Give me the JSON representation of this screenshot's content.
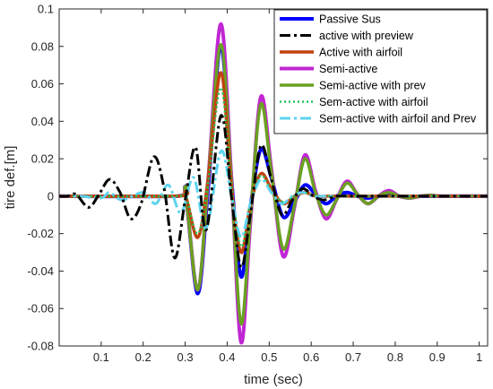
{
  "chart_data": {
    "type": "line",
    "title": "",
    "xlabel": "time (sec)",
    "ylabel": "tire def.[m]",
    "xlim": [
      0,
      1.02
    ],
    "ylim": [
      -0.08,
      0.1
    ],
    "xticks": [
      0.1,
      0.2,
      0.3,
      0.4,
      0.5,
      0.6,
      0.7,
      0.8,
      0.9,
      1
    ],
    "xtick_labels": [
      "0.1",
      "0.2",
      "0.3",
      "0.4",
      "0.5",
      "0.6",
      "0.7",
      "0.8",
      "0.9",
      "1"
    ],
    "yticks": [
      -0.08,
      -0.06,
      -0.04,
      -0.02,
      0,
      0.02,
      0.04,
      0.06,
      0.08,
      0.1
    ],
    "ytick_labels": [
      "-0.08",
      "-0.06",
      "-0.04",
      "-0.02",
      "0",
      "0.02",
      "0.04",
      "0.06",
      "0.08",
      "0.1"
    ],
    "grid": false,
    "legend_position": "top-right",
    "series": [
      {
        "name": "Passive Sus",
        "color": "#0000ff",
        "style": "solid",
        "x": [
          0,
          0.28,
          0.3,
          0.33,
          0.355,
          0.385,
          0.41,
          0.433,
          0.455,
          0.48,
          0.505,
          0.533,
          0.56,
          0.585,
          0.61,
          0.635,
          0.66,
          0.685,
          0.71,
          0.735,
          0.76,
          0.785,
          0.81,
          0.835,
          0.86,
          0.9,
          0.95,
          1.02
        ],
        "y": [
          0,
          0,
          0.002,
          -0.052,
          0.005,
          0.08,
          0.01,
          -0.043,
          -0.006,
          0.025,
          0.01,
          -0.011,
          -0.003,
          0.006,
          0.001,
          -0.004,
          0,
          0.002,
          0,
          -0.001,
          0,
          0.0005,
          0,
          -0.0005,
          0,
          0,
          0,
          0
        ]
      },
      {
        "name": "active with preview",
        "color": "#000000",
        "style": "dashdot",
        "x": [
          0,
          0.02,
          0.04,
          0.07,
          0.095,
          0.12,
          0.145,
          0.17,
          0.195,
          0.225,
          0.25,
          0.275,
          0.3,
          0.325,
          0.35,
          0.385,
          0.41,
          0.433,
          0.455,
          0.48,
          0.505,
          0.53,
          0.555,
          0.58,
          0.605,
          0.63,
          0.66,
          0.7,
          0.75,
          0.8,
          0.85,
          0.9,
          1.02
        ],
        "y": [
          0,
          0,
          0.001,
          -0.006,
          0.001,
          0.009,
          0.002,
          -0.012,
          -0.004,
          0.021,
          0.004,
          -0.033,
          -0.002,
          0.026,
          -0.018,
          0.043,
          0,
          -0.038,
          -0.01,
          0.027,
          0.009,
          -0.01,
          -0.002,
          0.004,
          0,
          -0.002,
          0,
          0,
          0,
          0,
          0,
          0,
          0
        ]
      },
      {
        "name": "Active with airfoil",
        "color": "#c2410c",
        "style": "solid",
        "x": [
          0,
          0.28,
          0.3,
          0.33,
          0.355,
          0.385,
          0.41,
          0.433,
          0.455,
          0.48,
          0.505,
          0.533,
          0.56,
          0.585,
          0.61,
          0.64,
          0.7,
          0.8,
          0.9,
          1.02
        ],
        "y": [
          0,
          0,
          0.001,
          -0.022,
          0.01,
          0.066,
          0.005,
          -0.03,
          -0.005,
          0.012,
          0.004,
          -0.004,
          0,
          0.002,
          0,
          0,
          0,
          0,
          0,
          0
        ]
      },
      {
        "name": "Semi-active",
        "color": "#c026d3",
        "style": "solid",
        "x": [
          0,
          0.28,
          0.3,
          0.33,
          0.355,
          0.385,
          0.41,
          0.433,
          0.455,
          0.48,
          0.505,
          0.533,
          0.56,
          0.585,
          0.61,
          0.635,
          0.66,
          0.685,
          0.71,
          0.735,
          0.76,
          0.785,
          0.81,
          0.835,
          0.86,
          0.885,
          0.91,
          0.95,
          1.02
        ],
        "y": [
          0,
          0,
          0.002,
          -0.05,
          0.01,
          0.092,
          0.01,
          -0.078,
          -0.015,
          0.053,
          0.015,
          -0.032,
          -0.006,
          0.022,
          0.003,
          -0.012,
          -0.002,
          0.008,
          0.001,
          -0.004,
          0,
          0.003,
          0,
          -0.001,
          0,
          0.0005,
          0,
          0,
          0
        ]
      },
      {
        "name": "Semi-active with prev",
        "color": "#6aa121",
        "style": "solid",
        "x": [
          0,
          0.28,
          0.3,
          0.33,
          0.355,
          0.385,
          0.41,
          0.433,
          0.455,
          0.48,
          0.505,
          0.533,
          0.56,
          0.585,
          0.61,
          0.635,
          0.66,
          0.685,
          0.71,
          0.735,
          0.76,
          0.785,
          0.81,
          0.835,
          0.86,
          0.885,
          0.91,
          0.95,
          1.02
        ],
        "y": [
          0,
          0,
          0.002,
          -0.05,
          0.01,
          0.081,
          0.008,
          -0.068,
          -0.012,
          0.049,
          0.013,
          -0.028,
          -0.005,
          0.02,
          0.002,
          -0.01,
          -0.002,
          0.007,
          0.001,
          -0.004,
          0,
          0.002,
          0,
          -0.001,
          0,
          0.0005,
          0,
          0,
          0
        ]
      },
      {
        "name": "Sem-active with airfoil",
        "color": "#22c55e",
        "style": "dotted",
        "x": [
          0,
          0.28,
          0.3,
          0.33,
          0.355,
          0.385,
          0.41,
          0.433,
          0.455,
          0.48,
          0.505,
          0.533,
          0.56,
          0.585,
          0.61,
          0.64,
          0.7,
          0.8,
          0.9,
          1.02
        ],
        "y": [
          0,
          0,
          0.001,
          -0.02,
          0.008,
          0.058,
          0.005,
          -0.027,
          -0.004,
          0.011,
          0.003,
          -0.003,
          0,
          0.002,
          0,
          0,
          0,
          0,
          0,
          0
        ]
      },
      {
        "name": "Sem-active with airfoil and Prev",
        "color": "#5dd3f0",
        "style": "dashdot",
        "x": [
          0,
          0.05,
          0.1,
          0.12,
          0.15,
          0.2,
          0.23,
          0.26,
          0.29,
          0.32,
          0.35,
          0.385,
          0.41,
          0.433,
          0.455,
          0.48,
          0.505,
          0.53,
          0.555,
          0.58,
          0.605,
          0.63,
          0.7,
          0.8,
          0.9,
          1.02
        ],
        "y": [
          0,
          0,
          -0.001,
          0.002,
          -0.002,
          0.002,
          -0.004,
          0.006,
          -0.009,
          0.01,
          -0.017,
          0.024,
          0,
          -0.022,
          -0.004,
          0.009,
          0.002,
          -0.004,
          0,
          0.002,
          0,
          0,
          0,
          0,
          0,
          0
        ]
      }
    ]
  }
}
